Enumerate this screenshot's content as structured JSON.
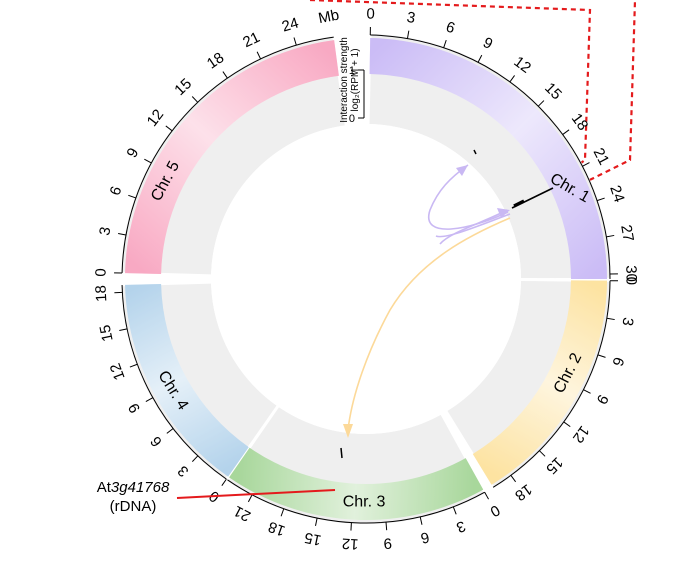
{
  "unit_label": "Mb",
  "scale_label_line1": "Interaction strength",
  "scale_label_line2": "log₂(RPM + 1)",
  "scale_ticks": [
    "0",
    "1"
  ],
  "chromosomes": [
    {
      "id": "chr1",
      "label": "Chr. 1",
      "ticks": [
        "0",
        "3",
        "6",
        "9",
        "12",
        "15",
        "18",
        "21",
        "24",
        "27",
        "30"
      ],
      "color": "#cbbcf6"
    },
    {
      "id": "chr2",
      "label": "Chr. 2",
      "ticks": [
        "0",
        "3",
        "6",
        "9",
        "12",
        "15",
        "18"
      ],
      "color": "#fde3a1"
    },
    {
      "id": "chr3",
      "label": "Chr. 3",
      "ticks": [
        "0",
        "3",
        "6",
        "9",
        "12",
        "15",
        "18",
        "21"
      ],
      "color": "#a8d79c"
    },
    {
      "id": "chr4",
      "label": "Chr. 4",
      "ticks": [
        "0",
        "3",
        "6",
        "9",
        "12",
        "15",
        "18"
      ],
      "color": "#b4d3ec"
    },
    {
      "id": "chr5",
      "label": "Chr. 5",
      "ticks": [
        "0",
        "3",
        "6",
        "9",
        "12",
        "15",
        "18",
        "21",
        "24"
      ],
      "color": "#f8a9c3"
    }
  ],
  "links": [
    {
      "from": "chr1",
      "to": "chr1",
      "color": "#c9b8f3"
    },
    {
      "from": "chr1",
      "to": "chr3",
      "color": "#fcd999"
    }
  ],
  "callout": {
    "gene_prefix": "At",
    "gene_italic": "3g41768",
    "note": "(rDNA)",
    "color": "#e41a1c"
  },
  "zoom_box_color": "#e41a1c"
}
